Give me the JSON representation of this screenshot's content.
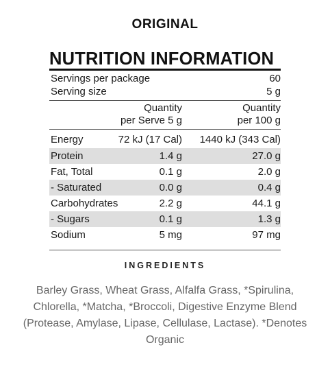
{
  "variant": "ORIGINAL",
  "panel": {
    "title": "NUTRITION INFORMATION",
    "servings_per_package": {
      "label": "Servings per package",
      "value": "60"
    },
    "serving_size": {
      "label": "Serving size",
      "value": "5 g"
    },
    "column_headers": {
      "per_serve_line1": "Quantity",
      "per_serve_line2": "per Serve 5 g",
      "per_100g_line1": "Quantity",
      "per_100g_line2": "per 100 g"
    },
    "rows": [
      {
        "nutrient": "Energy",
        "per_serve": "72 kJ (17 Cal)",
        "per_100g": "1440 kJ (343 Cal)"
      },
      {
        "nutrient": "Protein",
        "per_serve": "1.4 g",
        "per_100g": "27.0 g"
      },
      {
        "nutrient": "Fat, Total",
        "per_serve": "0.1 g",
        "per_100g": "2.0 g"
      },
      {
        "nutrient": "- Saturated",
        "per_serve": "0.0 g",
        "per_100g": "0.4 g"
      },
      {
        "nutrient": "Carbohydrates",
        "per_serve": "2.2 g",
        "per_100g": "44.1 g"
      },
      {
        "nutrient": "- Sugars",
        "per_serve": "0.1 g",
        "per_100g": "1.3 g"
      },
      {
        "nutrient": "Sodium",
        "per_serve": "5 mg",
        "per_100g": "97 mg"
      }
    ]
  },
  "ingredients": {
    "heading": "INGREDIENTS",
    "text": "Barley Grass, Wheat Grass, Alfalfa Grass, *Spirulina, Chlorella, *Matcha, *Broccoli, Digestive Enzyme Blend (Protease, Amylase, Lipase, Cellulase, Lactase). *Denotes Organic"
  }
}
